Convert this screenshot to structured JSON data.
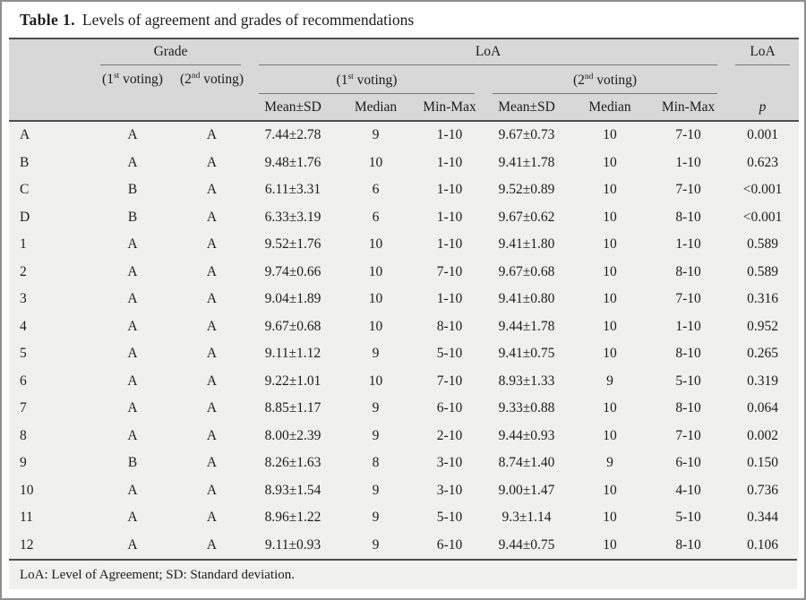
{
  "title": {
    "label": "Table 1.",
    "text": "Levels of agreement and grades of recommendations"
  },
  "header": {
    "grade_group": "Grade",
    "loa_group": "LoA",
    "loa_p_group": "LoA",
    "voting1": {
      "pre": "(1",
      "sup": "st",
      "post": " voting)"
    },
    "voting2": {
      "pre": "(2",
      "sup": "nd",
      "post": " voting)"
    },
    "mean_sd": "Mean±SD",
    "median": "Median",
    "min_max": "Min-Max",
    "p": "p"
  },
  "rows": [
    {
      "label": "A",
      "grade_v1": "A",
      "grade_v2": "A",
      "v1_mean_sd": "7.44±2.78",
      "v1_median": "9",
      "v1_min_max": "1-10",
      "v2_mean_sd": "9.67±0.73",
      "v2_median": "10",
      "v2_min_max": "7-10",
      "p": "0.001"
    },
    {
      "label": "B",
      "grade_v1": "A",
      "grade_v2": "A",
      "v1_mean_sd": "9.48±1.76",
      "v1_median": "10",
      "v1_min_max": "1-10",
      "v2_mean_sd": "9.41±1.78",
      "v2_median": "10",
      "v2_min_max": "1-10",
      "p": "0.623"
    },
    {
      "label": "C",
      "grade_v1": "B",
      "grade_v2": "A",
      "v1_mean_sd": "6.11±3.31",
      "v1_median": "6",
      "v1_min_max": "1-10",
      "v2_mean_sd": "9.52±0.89",
      "v2_median": "10",
      "v2_min_max": "7-10",
      "p": "<0.001"
    },
    {
      "label": "D",
      "grade_v1": "B",
      "grade_v2": "A",
      "v1_mean_sd": "6.33±3.19",
      "v1_median": "6",
      "v1_min_max": "1-10",
      "v2_mean_sd": "9.67±0.62",
      "v2_median": "10",
      "v2_min_max": "8-10",
      "p": "<0.001"
    },
    {
      "label": "1",
      "grade_v1": "A",
      "grade_v2": "A",
      "v1_mean_sd": "9.52±1.76",
      "v1_median": "10",
      "v1_min_max": "1-10",
      "v2_mean_sd": "9.41±1.80",
      "v2_median": "10",
      "v2_min_max": "1-10",
      "p": "0.589"
    },
    {
      "label": "2",
      "grade_v1": "A",
      "grade_v2": "A",
      "v1_mean_sd": "9.74±0.66",
      "v1_median": "10",
      "v1_min_max": "7-10",
      "v2_mean_sd": "9.67±0.68",
      "v2_median": "10",
      "v2_min_max": "8-10",
      "p": "0.589"
    },
    {
      "label": "3",
      "grade_v1": "A",
      "grade_v2": "A",
      "v1_mean_sd": "9.04±1.89",
      "v1_median": "10",
      "v1_min_max": "1-10",
      "v2_mean_sd": "9.41±0.80",
      "v2_median": "10",
      "v2_min_max": "7-10",
      "p": "0.316"
    },
    {
      "label": "4",
      "grade_v1": "A",
      "grade_v2": "A",
      "v1_mean_sd": "9.67±0.68",
      "v1_median": "10",
      "v1_min_max": "8-10",
      "v2_mean_sd": "9.44±1.78",
      "v2_median": "10",
      "v2_min_max": "1-10",
      "p": "0.952"
    },
    {
      "label": "5",
      "grade_v1": "A",
      "grade_v2": "A",
      "v1_mean_sd": "9.11±1.12",
      "v1_median": "9",
      "v1_min_max": "5-10",
      "v2_mean_sd": "9.41±0.75",
      "v2_median": "10",
      "v2_min_max": "8-10",
      "p": "0.265"
    },
    {
      "label": "6",
      "grade_v1": "A",
      "grade_v2": "A",
      "v1_mean_sd": "9.22±1.01",
      "v1_median": "10",
      "v1_min_max": "7-10",
      "v2_mean_sd": "8.93±1.33",
      "v2_median": "9",
      "v2_min_max": "5-10",
      "p": "0.319"
    },
    {
      "label": "7",
      "grade_v1": "A",
      "grade_v2": "A",
      "v1_mean_sd": "8.85±1.17",
      "v1_median": "9",
      "v1_min_max": "6-10",
      "v2_mean_sd": "9.33±0.88",
      "v2_median": "10",
      "v2_min_max": "8-10",
      "p": "0.064"
    },
    {
      "label": "8",
      "grade_v1": "A",
      "grade_v2": "A",
      "v1_mean_sd": "8.00±2.39",
      "v1_median": "9",
      "v1_min_max": "2-10",
      "v2_mean_sd": "9.44±0.93",
      "v2_median": "10",
      "v2_min_max": "7-10",
      "p": "0.002"
    },
    {
      "label": "9",
      "grade_v1": "B",
      "grade_v2": "A",
      "v1_mean_sd": "8.26±1.63",
      "v1_median": "8",
      "v1_min_max": "3-10",
      "v2_mean_sd": "8.74±1.40",
      "v2_median": "9",
      "v2_min_max": "6-10",
      "p": "0.150"
    },
    {
      "label": "10",
      "grade_v1": "A",
      "grade_v2": "A",
      "v1_mean_sd": "8.93±1.54",
      "v1_median": "9",
      "v1_min_max": "3-10",
      "v2_mean_sd": "9.00±1.47",
      "v2_median": "10",
      "v2_min_max": "4-10",
      "p": "0.736"
    },
    {
      "label": "11",
      "grade_v1": "A",
      "grade_v2": "A",
      "v1_mean_sd": "8.96±1.22",
      "v1_median": "9",
      "v1_min_max": "5-10",
      "v2_mean_sd": "9.3±1.14",
      "v2_median": "10",
      "v2_min_max": "5-10",
      "p": "0.344"
    },
    {
      "label": "12",
      "grade_v1": "A",
      "grade_v2": "A",
      "v1_mean_sd": "9.11±0.93",
      "v1_median": "9",
      "v1_min_max": "6-10",
      "v2_mean_sd": "9.44±0.75",
      "v2_median": "10",
      "v2_min_max": "8-10",
      "p": "0.106"
    }
  ],
  "footnote": "LoA: Level of Agreement; SD: Standard deviation.",
  "colors": {
    "header_bg": "#d8d8d8",
    "body_bg": "#f0f0ef",
    "rule_dark": "#4d4d4d",
    "rule_light": "#757575",
    "frame_border": "#8f8f8f",
    "text": "#1c1c1c"
  }
}
